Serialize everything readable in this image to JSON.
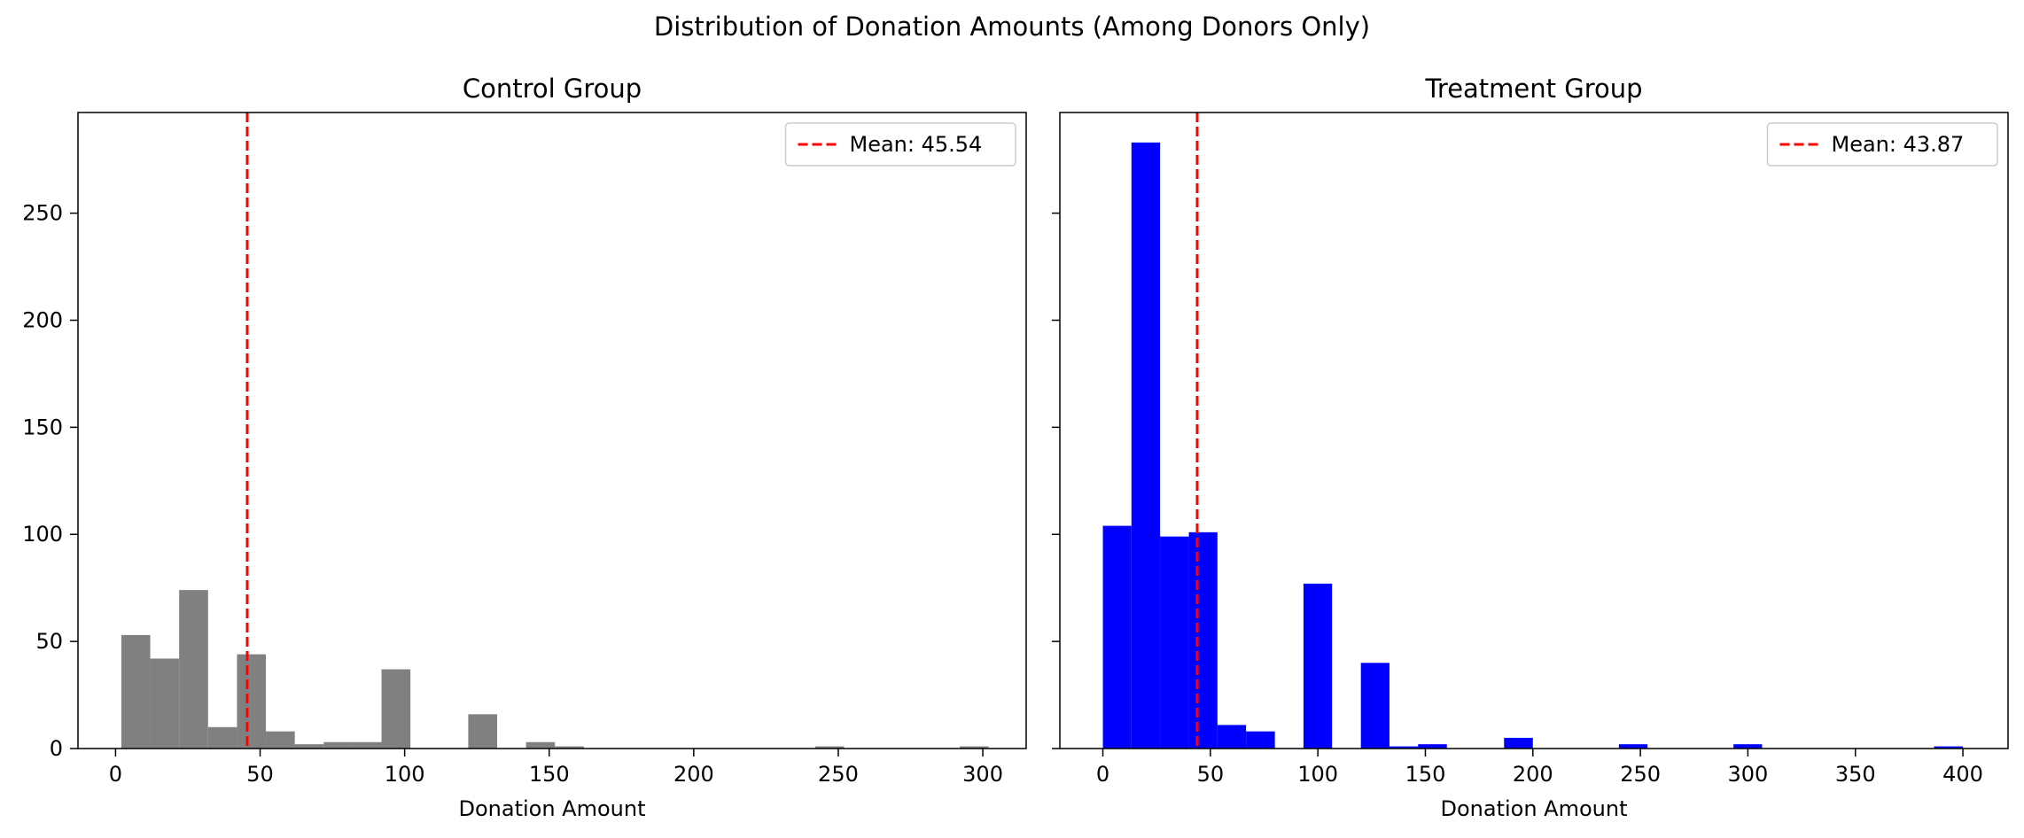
{
  "figure": {
    "suptitle": "Distribution of Donation Amounts (Among Donors Only)"
  },
  "chart_data": [
    {
      "type": "histogram",
      "title": "Control Group",
      "xlabel": "Donation Amount",
      "ylabel": "",
      "xlim": [
        -13,
        315
      ],
      "ylim": [
        0,
        297
      ],
      "xticks": [
        0,
        50,
        100,
        150,
        200,
        250,
        300
      ],
      "yticks": [
        0,
        50,
        100,
        150,
        200,
        250
      ],
      "bar_color": "#808080",
      "legend": {
        "placement": "top-right",
        "entries": [
          {
            "label": "Mean: 45.54",
            "style": "dashed",
            "color": "#ff0000"
          }
        ]
      },
      "mean": 45.54,
      "bins": [
        {
          "x0": 2,
          "x1": 12,
          "count": 53
        },
        {
          "x0": 12,
          "x1": 22,
          "count": 42
        },
        {
          "x0": 22,
          "x1": 32,
          "count": 74
        },
        {
          "x0": 32,
          "x1": 42,
          "count": 10
        },
        {
          "x0": 42,
          "x1": 52,
          "count": 44
        },
        {
          "x0": 52,
          "x1": 62,
          "count": 8
        },
        {
          "x0": 62,
          "x1": 72,
          "count": 2
        },
        {
          "x0": 72,
          "x1": 82,
          "count": 3
        },
        {
          "x0": 82,
          "x1": 92,
          "count": 3
        },
        {
          "x0": 92,
          "x1": 102,
          "count": 37
        },
        {
          "x0": 122,
          "x1": 132,
          "count": 16
        },
        {
          "x0": 142,
          "x1": 152,
          "count": 3
        },
        {
          "x0": 152,
          "x1": 162,
          "count": 1
        },
        {
          "x0": 242,
          "x1": 252,
          "count": 1
        },
        {
          "x0": 292,
          "x1": 302,
          "count": 1
        }
      ]
    },
    {
      "type": "histogram",
      "title": "Treatment Group",
      "xlabel": "Donation Amount",
      "ylabel": "",
      "xlim": [
        -20,
        421
      ],
      "ylim": [
        0,
        297
      ],
      "xticks": [
        0,
        50,
        100,
        150,
        200,
        250,
        300,
        350,
        400
      ],
      "yticks": [
        0,
        50,
        100,
        150,
        200,
        250
      ],
      "bar_color": "#0000ff",
      "legend": {
        "placement": "top-right",
        "entries": [
          {
            "label": "Mean: 43.87",
            "style": "dashed",
            "color": "#ff0000"
          }
        ]
      },
      "mean": 43.87,
      "bins": [
        {
          "x0": 0,
          "x1": 13.3,
          "count": 104
        },
        {
          "x0": 13.3,
          "x1": 26.6,
          "count": 283
        },
        {
          "x0": 26.6,
          "x1": 40,
          "count": 99
        },
        {
          "x0": 40,
          "x1": 53.3,
          "count": 101
        },
        {
          "x0": 53.3,
          "x1": 66.6,
          "count": 11
        },
        {
          "x0": 66.6,
          "x1": 80,
          "count": 8
        },
        {
          "x0": 93.3,
          "x1": 106.6,
          "count": 77
        },
        {
          "x0": 120,
          "x1": 133.3,
          "count": 40
        },
        {
          "x0": 133.3,
          "x1": 146.6,
          "count": 1
        },
        {
          "x0": 146.6,
          "x1": 160,
          "count": 2
        },
        {
          "x0": 186.6,
          "x1": 200,
          "count": 5
        },
        {
          "x0": 240,
          "x1": 253.3,
          "count": 2
        },
        {
          "x0": 293.3,
          "x1": 306.6,
          "count": 2
        },
        {
          "x0": 386.6,
          "x1": 400,
          "count": 1
        }
      ]
    }
  ]
}
